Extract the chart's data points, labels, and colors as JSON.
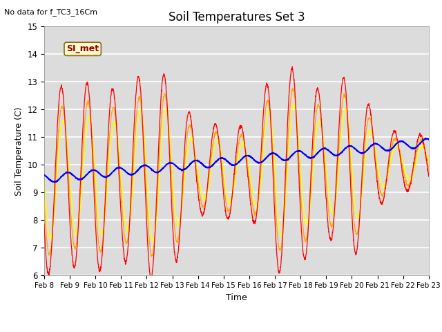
{
  "title": "Soil Temperatures Set 3",
  "xlabel": "Time",
  "ylabel": "Soil Temperature (C)",
  "top_left_text": "No data for f_TC3_16Cm",
  "annotation_text": "SI_met",
  "ylim": [
    6.0,
    15.0
  ],
  "yticks": [
    6.0,
    7.0,
    8.0,
    9.0,
    10.0,
    11.0,
    12.0,
    13.0,
    14.0,
    15.0
  ],
  "xtick_labels": [
    "Feb 8",
    "Feb 9",
    "Feb 10",
    "Feb 11",
    "Feb 12",
    "Feb 13",
    "Feb 14",
    "Feb 15",
    "Feb 16",
    "Feb 17",
    "Feb 18",
    "Feb 19",
    "Feb 20",
    "Feb 21",
    "Feb 22",
    "Feb 23"
  ],
  "colors": {
    "TC3_2Cm": "#FF0000",
    "TC3_4Cm": "#FFA500",
    "TC3_8Cm": "#FFFF00",
    "TC3_32Cm": "#0000FF"
  },
  "background_color": "#DCDCDC",
  "grid_color": "#FFFFFF"
}
